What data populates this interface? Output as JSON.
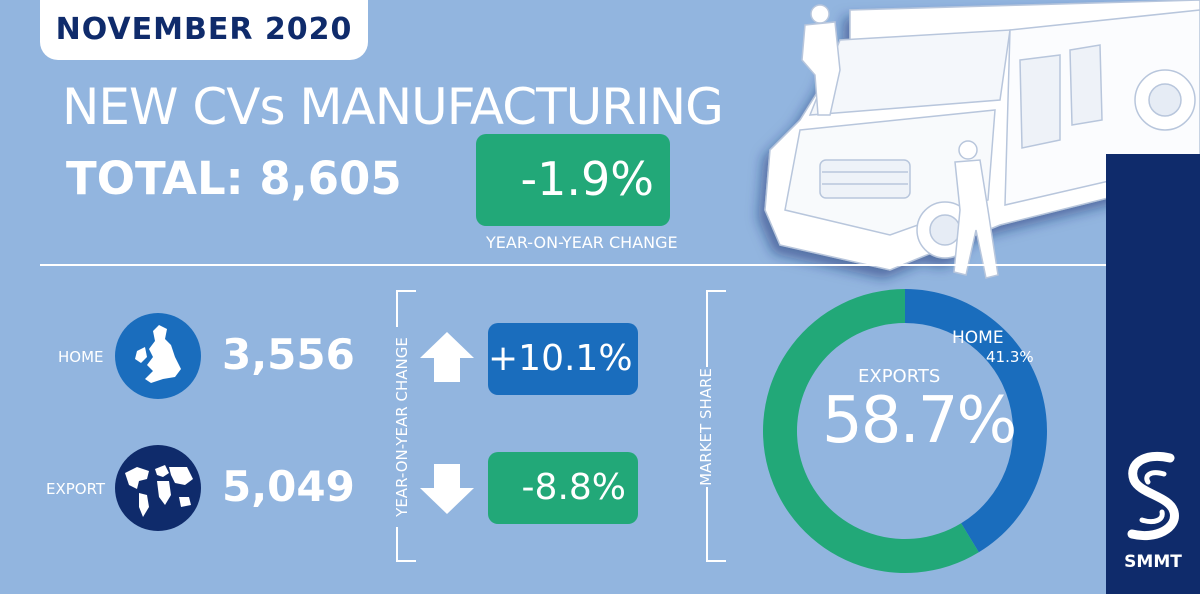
{
  "header": {
    "date": "NOVEMBER 2020",
    "title": "NEW CVs MANUFACTURING",
    "total": "TOTAL: 8,605",
    "total_change": "-1.9%",
    "total_change_label": "YEAR-ON-YEAR CHANGE"
  },
  "breakdown": {
    "home": {
      "label": "HOME",
      "value": "3,556",
      "change": "+10.1%",
      "direction": "up"
    },
    "export": {
      "label": "EXPORT",
      "value": "5,049",
      "change": "-8.8%",
      "direction": "down"
    },
    "yoy_label": "YEAR-ON-YEAR CHANGE"
  },
  "market_share": {
    "label": "MARKET SHARE",
    "exports_label": "EXPORTS",
    "exports_value": "58.7%",
    "home_label": "HOME",
    "home_value": "41.3%"
  },
  "chart_data": {
    "type": "pie",
    "categories": [
      "EXPORTS",
      "HOME"
    ],
    "values": [
      58.7,
      41.3
    ],
    "colors": [
      "#22a878",
      "#1a6dbd"
    ]
  },
  "brand": {
    "name": "SMMT"
  },
  "colors": {
    "background": "#92b5df",
    "navy": "#0f2b6b",
    "green": "#22a878",
    "blue": "#1a6dbd"
  },
  "icons": [
    "uk-globe-icon",
    "world-globe-icon",
    "up-arrow-icon",
    "down-arrow-icon",
    "smmt-logo-icon",
    "van-illustration"
  ]
}
